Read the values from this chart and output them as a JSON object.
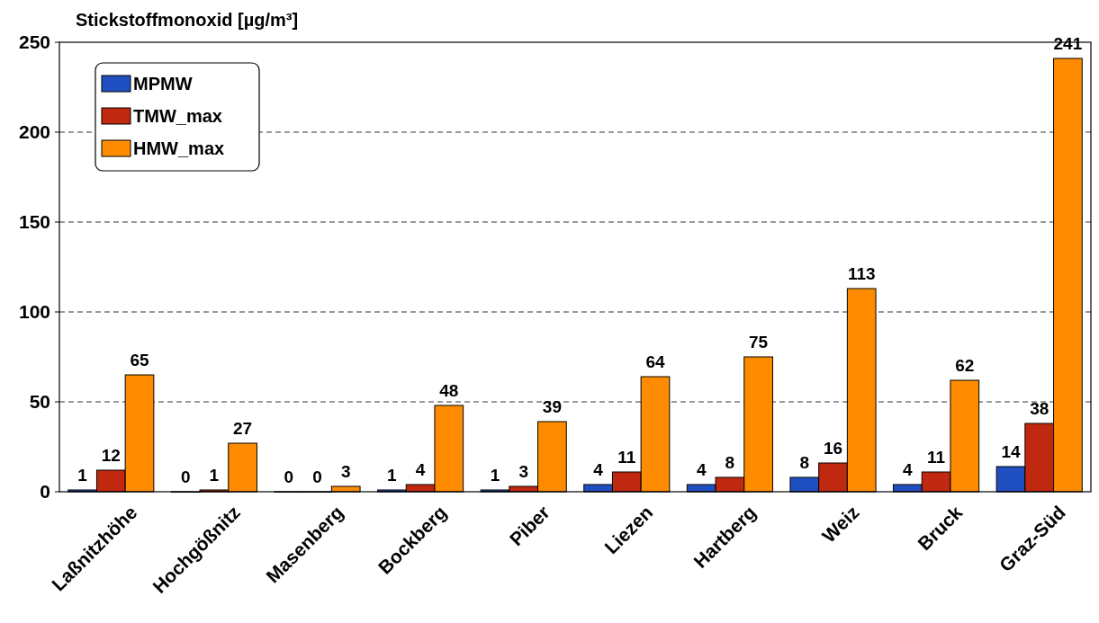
{
  "chart_data": {
    "type": "bar",
    "ylabel": "Stickstoffmonoxid [µg/m³]",
    "categories": [
      "Laßnitzhöhe",
      "Hochgößnitz",
      "Masenberg",
      "Bockberg",
      "Piber",
      "Liezen",
      "Hartberg",
      "Weiz",
      "Bruck",
      "Graz-Süd"
    ],
    "series": [
      {
        "name": "MPMW",
        "color": "#1f4fc0",
        "values": [
          1,
          0,
          0,
          1,
          1,
          4,
          4,
          8,
          4,
          14
        ]
      },
      {
        "name": "TMW_max",
        "color": "#c0290f",
        "values": [
          12,
          1,
          0,
          4,
          3,
          11,
          8,
          16,
          11,
          38
        ]
      },
      {
        "name": "HMW_max",
        "color": "#ff8c00",
        "values": [
          65,
          27,
          3,
          48,
          39,
          64,
          75,
          113,
          62,
          241
        ]
      }
    ],
    "ylim": [
      0,
      250
    ],
    "yticks": [
      0,
      50,
      100,
      150,
      200,
      250
    ],
    "grid": "y",
    "legend": "top left",
    "data_labels": true
  }
}
